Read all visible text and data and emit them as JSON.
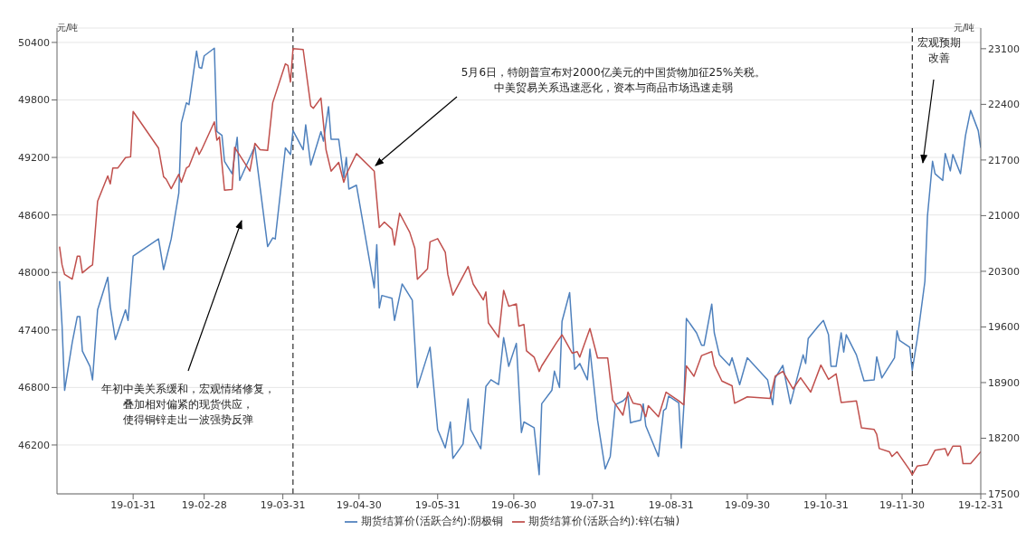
{
  "chart_data": {
    "type": "line",
    "ylabel": "元/吨",
    "y2label": "元/吨",
    "xlim": [
      "--01-01",
      "--12-31"
    ],
    "xticks": [
      {
        "value": "--01-31",
        "label": "19-01-31"
      },
      {
        "value": "--02-28",
        "label": "19-02-28"
      },
      {
        "value": "--03-31",
        "label": "19-03-31"
      },
      {
        "value": "--04-30",
        "label": "19-04-30"
      },
      {
        "value": "--05-31",
        "label": "19-05-31"
      },
      {
        "value": "--06-30",
        "label": "19-06-30"
      },
      {
        "value": "--07-31",
        "label": "19-07-31"
      },
      {
        "value": "--08-31",
        "label": "19-08-31"
      },
      {
        "value": "--09-30",
        "label": "19-09-30"
      },
      {
        "value": "--10-31",
        "label": "19-10-31"
      },
      {
        "value": "--11-30",
        "label": "19-11-30"
      },
      {
        "value": "--12-31",
        "label": "19-12-31"
      }
    ],
    "ylim": [
      45690,
      50550
    ],
    "yticks": [
      46200,
      46800,
      47400,
      48000,
      48600,
      49200,
      49800,
      50400
    ],
    "y2lim": [
      17500,
      23360
    ],
    "y2ticks": [
      17500,
      18200,
      18900,
      19600,
      20300,
      21000,
      21700,
      22400,
      23100
    ],
    "grid": "y",
    "legend": "bottom",
    "marker": "none",
    "line_style": "solid",
    "series": [
      {
        "name": "期货结算价(活跃合约):阴极铜",
        "color": "#4f81bd",
        "x": [
          "--01-02",
          "--01-03",
          "--01-04",
          "--01-07",
          "--01-09",
          "--01-10",
          "--01-11",
          "--01-14",
          "--01-15",
          "--01-17",
          "--01-21",
          "--01-22",
          "--01-24",
          "--01-28",
          "--01-29",
          "--01-31",
          "--02-10",
          "--02-12",
          "--02-15",
          "--02-18",
          "--02-19",
          "--02-21",
          "--02-22",
          "--02-25",
          "--02-26",
          "--02-27",
          "--02-28",
          "--03-04",
          "--03-05",
          "--03-07",
          "--03-08",
          "--03-11",
          "--03-13",
          "--03-14",
          "--03-19",
          "--03-20",
          "--03-25",
          "--03-27",
          "--03-28",
          "--04-01",
          "--04-03",
          "--04-04",
          "--04-08",
          "--04-09",
          "--04-11",
          "--04-15",
          "--04-16",
          "--04-18",
          "--04-19",
          "--04-22",
          "--04-24",
          "--04-25",
          "--04-26",
          "--04-29",
          "--05-06",
          "--05-07",
          "--05-08",
          "--05-09",
          "--05-13",
          "--05-14",
          "--05-17",
          "--05-21",
          "--05-23",
          "--05-28",
          "--05-31",
          "--06-03",
          "--06-05",
          "--06-06",
          "--06-10",
          "--06-12",
          "--06-13",
          "--06-17",
          "--06-19",
          "--06-21",
          "--06-24",
          "--06-26",
          "--06-28",
          "--07-01",
          "--07-03",
          "--07-04",
          "--07-08",
          "--07-10",
          "--07-11",
          "--07-15",
          "--07-16",
          "--07-18",
          "--07-19",
          "--07-22",
          "--07-24",
          "--07-26",
          "--07-29",
          "--07-30",
          "--08-02",
          "--08-05",
          "--08-07",
          "--08-09",
          "--08-12",
          "--08-14",
          "--08-15",
          "--08-16",
          "--08-19",
          "--08-20",
          "--08-21",
          "--08-26",
          "--08-28",
          "--08-29",
          "--08-30",
          "--09-03",
          "--09-04",
          "--09-05",
          "--09-06",
          "--09-10",
          "--09-12",
          "--09-13",
          "--09-16",
          "--09-17",
          "--09-19",
          "--09-23",
          "--09-24",
          "--09-27",
          "--09-30",
          "--10-08",
          "--10-10",
          "--10-11",
          "--10-14",
          "--10-17",
          "--10-22",
          "--10-23",
          "--10-24",
          "--10-28",
          "--10-30",
          "--11-01",
          "--11-02",
          "--11-04",
          "--11-06",
          "--11-07",
          "--11-08",
          "--11-12",
          "--11-15",
          "--11-19",
          "--11-20",
          "--11-22",
          "--11-27",
          "--11-28",
          "--11-29",
          "--12-03",
          "--12-04",
          "--12-06",
          "--12-09",
          "--12-10",
          "--12-12",
          "--12-13",
          "--12-16",
          "--12-17",
          "--12-19",
          "--12-20",
          "--12-23",
          "--12-25",
          "--12-27",
          "--12-30",
          "--12-31"
        ],
        "values": [
          47910,
          47440,
          46770,
          47270,
          47540,
          47540,
          47180,
          47020,
          46880,
          47610,
          47950,
          47640,
          47300,
          47610,
          47500,
          48170,
          48350,
          48030,
          48350,
          48830,
          49560,
          49770,
          49750,
          50310,
          50140,
          50130,
          50260,
          50340,
          49470,
          49430,
          49160,
          49030,
          49410,
          48960,
          49260,
          49310,
          48270,
          48360,
          48350,
          49300,
          49230,
          49480,
          49280,
          49540,
          49120,
          49470,
          49370,
          49730,
          49390,
          49390,
          48990,
          49200,
          48870,
          48910,
          47840,
          48290,
          47630,
          47760,
          47730,
          47500,
          47880,
          47710,
          46800,
          47220,
          46360,
          46170,
          46440,
          46060,
          46210,
          46680,
          46360,
          46160,
          46810,
          46880,
          46830,
          47320,
          47020,
          47260,
          46330,
          46440,
          46380,
          45890,
          46630,
          46770,
          46970,
          46800,
          47490,
          47790,
          46990,
          47050,
          46880,
          47200,
          46460,
          45950,
          46080,
          46620,
          46660,
          46710,
          46430,
          46440,
          46460,
          46630,
          46400,
          46080,
          46560,
          46580,
          46710,
          46640,
          46170,
          46600,
          47520,
          47370,
          47240,
          47240,
          47670,
          47370,
          47140,
          47030,
          47110,
          46830,
          47110,
          46880,
          46620,
          46900,
          47030,
          46630,
          47140,
          47050,
          47310,
          47440,
          47500,
          47350,
          47020,
          47020,
          47370,
          47170,
          47350,
          47140,
          46870,
          46880,
          47120,
          46900,
          47110,
          47390,
          47290,
          47220,
          46980,
          47310,
          47910,
          48590,
          49160,
          49030,
          48960,
          49240,
          49060,
          49230,
          49030,
          49430,
          49690,
          49480,
          49300
        ]
      },
      {
        "name": "期货结算价(活跃合约):锌(右轴)",
        "color": "#c0504d",
        "axis": "y2",
        "x": [
          "--01-02",
          "--01-03",
          "--01-04",
          "--01-07",
          "--01-09",
          "--01-10",
          "--01-11",
          "--01-14",
          "--01-15",
          "--01-17",
          "--01-21",
          "--01-22",
          "--01-23",
          "--01-25",
          "--01-28",
          "--01-30",
          "--01-31",
          "--02-10",
          "--02-12",
          "--02-13",
          "--02-15",
          "--02-18",
          "--02-19",
          "--02-21",
          "--02-22",
          "--02-25",
          "--02-26",
          "--02-27",
          "--03-04",
          "--03-05",
          "--03-06",
          "--03-08",
          "--03-11",
          "--03-12",
          "--03-18",
          "--03-20",
          "--03-22",
          "--03-25",
          "--03-27",
          "--04-01",
          "--04-02",
          "--04-03",
          "--04-04",
          "--04-08",
          "--04-11",
          "--04-12",
          "--04-15",
          "--04-17",
          "--04-19",
          "--04-22",
          "--04-24",
          "--04-25",
          "--04-29",
          "--05-06",
          "--05-08",
          "--05-10",
          "--05-13",
          "--05-14",
          "--05-16",
          "--05-20",
          "--05-22",
          "--05-23",
          "--05-27",
          "--05-28",
          "--05-31",
          "--06-03",
          "--06-04",
          "--06-06",
          "--06-12",
          "--06-14",
          "--06-18",
          "--06-19",
          "--06-20",
          "--06-24",
          "--06-26",
          "--06-28",
          "--07-01",
          "--07-02",
          "--07-04",
          "--07-05",
          "--07-08",
          "--07-10",
          "--07-11",
          "--07-17",
          "--07-19",
          "--07-23",
          "--07-25",
          "--07-26",
          "--07-30",
          "--08-02",
          "--08-06",
          "--08-08",
          "--08-12",
          "--08-14",
          "--08-16",
          "--08-19",
          "--08-21",
          "--08-22",
          "--08-26",
          "--08-29",
          "--09-03",
          "--09-05",
          "--09-06",
          "--09-09",
          "--09-12",
          "--09-16",
          "--09-17",
          "--09-20",
          "--09-24",
          "--09-25",
          "--09-30",
          "--10-09",
          "--10-11",
          "--10-14",
          "--10-18",
          "--10-21",
          "--10-25",
          "--10-29",
          "--11-01",
          "--11-04",
          "--11-06",
          "--11-12",
          "--11-14",
          "--11-19",
          "--11-20",
          "--11-21",
          "--11-25",
          "--11-26",
          "--11-28",
          "--12-03",
          "--12-04",
          "--12-06",
          "--12-10",
          "--12-13",
          "--12-17",
          "--12-18",
          "--12-20",
          "--12-23",
          "--12-24",
          "--12-27",
          "--12-31"
        ],
        "values": [
          20610,
          20380,
          20260,
          20200,
          20490,
          20490,
          20280,
          20360,
          20380,
          21180,
          21500,
          21400,
          21600,
          21600,
          21730,
          21740,
          22310,
          21850,
          21490,
          21460,
          21340,
          21520,
          21420,
          21600,
          21620,
          21860,
          21770,
          21830,
          22180,
          21950,
          21990,
          21320,
          21330,
          21860,
          21560,
          21910,
          21830,
          21820,
          22420,
          22910,
          22890,
          22680,
          23100,
          23090,
          22380,
          22350,
          22480,
          21830,
          21560,
          21670,
          21420,
          21520,
          21780,
          21560,
          20850,
          20920,
          20830,
          20630,
          21030,
          20790,
          20590,
          20200,
          20330,
          20670,
          20710,
          20540,
          20260,
          20000,
          20360,
          20140,
          19940,
          20040,
          19650,
          19470,
          20060,
          19860,
          19890,
          19610,
          19630,
          19300,
          19220,
          19040,
          19110,
          19410,
          19500,
          19270,
          19290,
          19220,
          19580,
          19210,
          19210,
          18680,
          18490,
          18780,
          18640,
          18620,
          18470,
          18610,
          18470,
          18780,
          18670,
          18620,
          19110,
          18980,
          19240,
          19290,
          19120,
          18920,
          18860,
          18640,
          18720,
          18700,
          18980,
          19040,
          18820,
          18960,
          18780,
          19120,
          18940,
          19010,
          18650,
          18670,
          18330,
          18310,
          18250,
          18070,
          18030,
          17970,
          18030,
          17800,
          17740,
          17850,
          17870,
          18050,
          18070,
          17980,
          18100,
          18100,
          17880,
          17880,
          18030
        ]
      }
    ],
    "ref_lines": [
      {
        "axis": "x",
        "value": "--04-04",
        "color": "#000000",
        "line_style": "dashed"
      },
      {
        "axis": "x",
        "value": "--12-04",
        "color": "#000000",
        "line_style": "dashed"
      }
    ],
    "annotations": [
      "年初中美关系缓和，宏观情绪修复，叠加相对偏紧的现货供应，使得铜锌走出一波强势反弹",
      "5月6日，特朗普宣布对2000亿美元的中国货物加征25%关税。中美贸易关系迅速恶化，资本与商品市场迅速走弱",
      "宏观预期改善"
    ]
  }
}
